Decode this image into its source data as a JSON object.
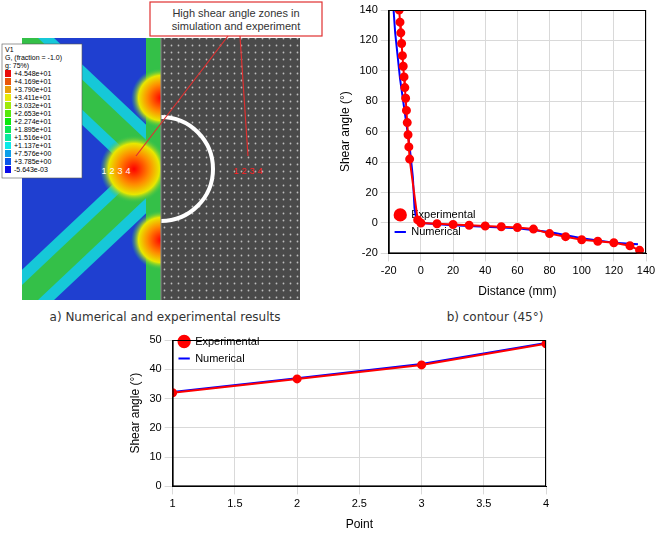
{
  "image_panel": {
    "caption": "a) Numerical and experimental results",
    "annotation": "High shear angle zones in simulation and experiment",
    "contour_legend": {
      "header": [
        "V1",
        "G, (fraction = -1.0)",
        "g: 75%)"
      ],
      "values": [
        "+4.548e+01",
        "+4.169e+01",
        "+3.790e+01",
        "+3.411e+01",
        "+3.032e+01",
        "+2.653e+01",
        "+2.274e+01",
        "+1.895e+01",
        "+1.516e+01",
        "+1.137e+01",
        "+7.576e+00",
        "+3.785e+00",
        "-5.643e-03"
      ]
    },
    "point_labels_simulation": [
      "1",
      "2",
      "3",
      "4"
    ],
    "point_labels_experiment": [
      "1",
      "2",
      "3",
      "4"
    ]
  },
  "chart_data": [
    {
      "type": "line",
      "title": "b) contour (45°)",
      "x_label": "Distance (mm)",
      "y_label": "Shear angle (°)",
      "xlim": [
        -20,
        140
      ],
      "xticks": [
        -20,
        0,
        20,
        40,
        60,
        80,
        100,
        120,
        140
      ],
      "ylim": [
        -20,
        140
      ],
      "yticks": [
        -20,
        0,
        20,
        40,
        60,
        80,
        100,
        120,
        140
      ],
      "grid": true,
      "legend": "upper right",
      "series": [
        {
          "name": "Experimental",
          "color": "#ff0000",
          "marker": "circle",
          "line_style": "solid",
          "x": [
            -13.5,
            -13,
            -12.5,
            -12,
            -11.5,
            -11,
            -10.5,
            -10,
            -9.5,
            -9,
            -8.5,
            -8,
            -7.5,
            -7,
            -2,
            0,
            10,
            20,
            30,
            40,
            50,
            60,
            70,
            80,
            90,
            100,
            110,
            120,
            130,
            136
          ],
          "values": [
            140,
            132,
            125,
            118,
            110,
            103,
            96,
            89,
            82,
            74,
            66,
            58,
            50,
            42,
            2,
            0,
            -0.5,
            -1,
            -1.5,
            -2,
            -2.5,
            -3,
            -4,
            -7,
            -9,
            -11,
            -12,
            -13,
            -15,
            -18
          ]
        },
        {
          "name": "Numerical",
          "color": "#0000ff",
          "marker": "none",
          "line_style": "solid",
          "x": [
            -17,
            -16,
            -14.5,
            -13,
            -11,
            -9,
            -7,
            -5,
            -4,
            -3,
            0,
            20,
            40,
            60,
            80,
            100,
            120,
            135
          ],
          "values": [
            140,
            125,
            110,
            95,
            80,
            65,
            50,
            30,
            10,
            3,
            0,
            -1.5,
            -2.5,
            -3.5,
            -6,
            -10,
            -13,
            -14
          ]
        }
      ]
    },
    {
      "type": "line",
      "x_label": "Point",
      "y_label": "Shear angle (°)",
      "xlim": [
        1,
        4
      ],
      "xticks": [
        1,
        1.5,
        2,
        2.5,
        3,
        3.5,
        4
      ],
      "ylim": [
        0,
        50
      ],
      "yticks": [
        0,
        10,
        20,
        30,
        40,
        50
      ],
      "grid": true,
      "legend": "upper left",
      "series": [
        {
          "name": "Experimental",
          "color": "#ff0000",
          "marker": "circle",
          "line_style": "solid",
          "x": [
            1,
            2,
            3,
            4
          ],
          "values": [
            32,
            36.7,
            41.5,
            48.7
          ]
        },
        {
          "name": "Numerical",
          "color": "#0000ff",
          "marker": "none",
          "line_style": "solid",
          "x": [
            1,
            2,
            3,
            4
          ],
          "values": [
            32.2,
            36.9,
            41.8,
            49
          ]
        }
      ]
    }
  ]
}
